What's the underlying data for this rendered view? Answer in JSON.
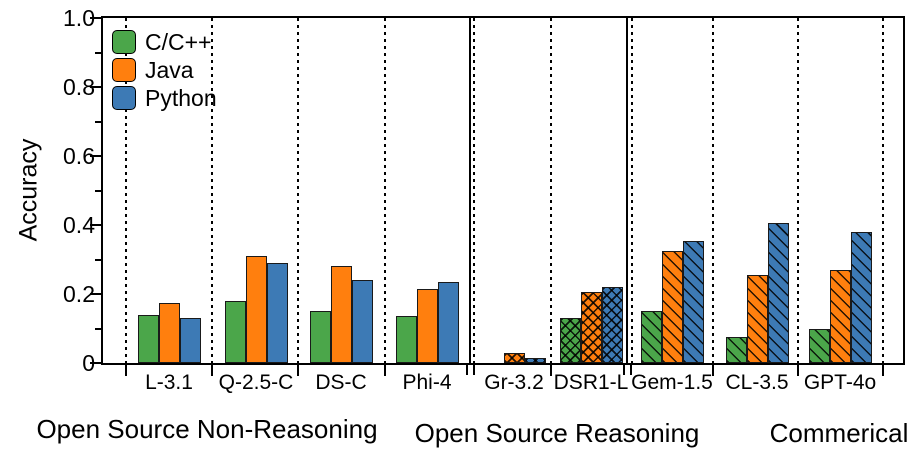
{
  "chart_data": {
    "type": "bar",
    "title": "",
    "xlabel": "",
    "ylabel": "Accuracy",
    "ylim": [
      0,
      1.0
    ],
    "ytick_labels": [
      "0",
      "0.2",
      "0.4",
      "0.6",
      "0.8",
      "1.0"
    ],
    "grid": "vertical-dotted-between-categories",
    "legend_position": "upper-left-inside",
    "series": [
      {
        "name": "C/C++",
        "color": "#4ba64a"
      },
      {
        "name": "Java",
        "color": "#ff7f0e"
      },
      {
        "name": "Python",
        "color": "#3d7ab5"
      }
    ],
    "edge_color": "#1a1a1a",
    "groups": [
      {
        "label": "Open Source Non-Reasoning",
        "hatch": "solid",
        "categories": [
          {
            "label": "L-3.1",
            "values": [
              0.14,
              0.175,
              0.13
            ]
          },
          {
            "label": "Q-2.5-C",
            "values": [
              0.18,
              0.31,
              0.29
            ]
          },
          {
            "label": "DS-C",
            "values": [
              0.15,
              0.28,
              0.24
            ]
          },
          {
            "label": "Phi-4",
            "values": [
              0.135,
              0.215,
              0.235
            ]
          }
        ]
      },
      {
        "label": "Open Source Reasoning",
        "hatch": "cross",
        "categories": [
          {
            "label": "Gr-3.2",
            "values": [
              0.0,
              0.03,
              0.015
            ]
          },
          {
            "label": "DSR1-L",
            "values": [
              0.13,
              0.205,
              0.22
            ]
          }
        ]
      },
      {
        "label": "Commerical",
        "hatch": "diagonal",
        "categories": [
          {
            "label": "Gem-1.5",
            "values": [
              0.15,
              0.325,
              0.355
            ]
          },
          {
            "label": "CL-3.5",
            "values": [
              0.075,
              0.255,
              0.405
            ]
          },
          {
            "label": "GPT-4o",
            "values": [
              0.1,
              0.27,
              0.38
            ]
          }
        ]
      }
    ]
  }
}
